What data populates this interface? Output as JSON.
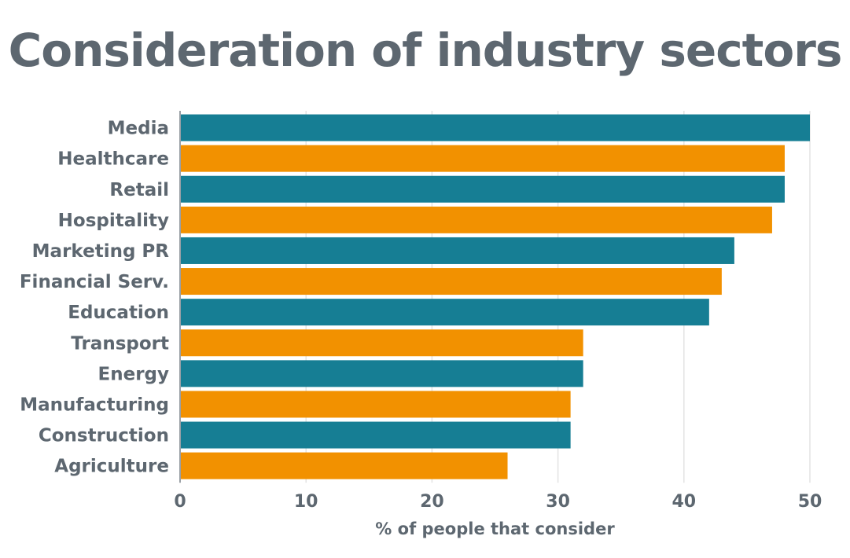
{
  "colors": {
    "text": "#5d6770",
    "teal": "#167e94",
    "orange": "#f29100",
    "grid": "#e3e3e3",
    "axis": "#9aa0a6"
  },
  "chart_data": {
    "type": "bar",
    "orientation": "horizontal",
    "title": "Consideration of industry sectors",
    "xlabel": "% of people that consider",
    "ylabel": "",
    "xlim": [
      0,
      50
    ],
    "xticks": [
      0,
      10,
      20,
      30,
      40,
      50
    ],
    "grid": true,
    "legend": "none",
    "categories": [
      "Media",
      "Healthcare",
      "Retail",
      "Hospitality",
      "Marketing PR",
      "Financial Serv.",
      "Education",
      "Transport",
      "Energy",
      "Manufacturing",
      "Construction",
      "Agriculture"
    ],
    "values": [
      50,
      48,
      48,
      47,
      44,
      43,
      42,
      32,
      32,
      31,
      31,
      26
    ],
    "bar_colors": [
      "#167e94",
      "#f29100",
      "#167e94",
      "#f29100",
      "#167e94",
      "#f29100",
      "#167e94",
      "#f29100",
      "#167e94",
      "#f29100",
      "#167e94",
      "#f29100"
    ]
  }
}
